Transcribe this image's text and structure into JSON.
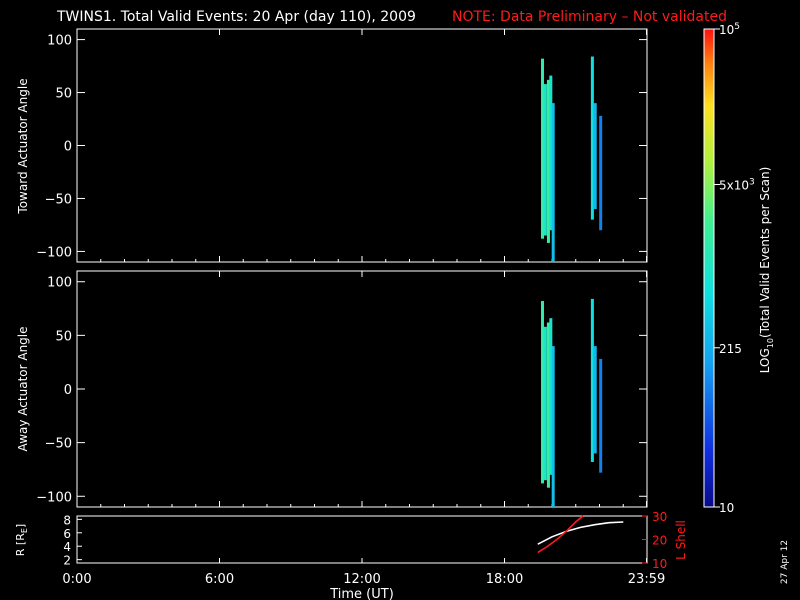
{
  "title": {
    "main": "TWINS1. Total Valid Events: 20 Apr (day 110), 2009",
    "note": "NOTE: Data Preliminary – Not validated",
    "note_color": "#ff1a1a"
  },
  "stamp": "27 Apr 12",
  "chart_data": [
    {
      "type": "heatmap",
      "panel": "toward",
      "ylabel": "Toward Actuator Angle",
      "xlim": [
        0,
        24
      ],
      "ylim": [
        -110,
        110
      ],
      "y_ticks": [
        "100",
        "50",
        "0",
        "−50",
        "−100"
      ],
      "y_tick_values": [
        100,
        50,
        0,
        -50,
        -100
      ],
      "strips": [
        {
          "t": 19.6,
          "ymin": -88,
          "ymax": 82,
          "log10": 3.2
        },
        {
          "t": 19.72,
          "ymin": -85,
          "ymax": 58,
          "log10": 3.0
        },
        {
          "t": 19.85,
          "ymin": -92,
          "ymax": 62,
          "log10": 3.3
        },
        {
          "t": 19.95,
          "ymin": -80,
          "ymax": 66,
          "log10": 2.9
        },
        {
          "t": 20.05,
          "ymin": -110,
          "ymax": 40,
          "log10": 2.5
        },
        {
          "t": 21.7,
          "ymin": -70,
          "ymax": 84,
          "log10": 2.8
        },
        {
          "t": 21.82,
          "ymin": -60,
          "ymax": 40,
          "log10": 2.4
        },
        {
          "t": 22.05,
          "ymin": -80,
          "ymax": 28,
          "log10": 2.0
        }
      ]
    },
    {
      "type": "heatmap",
      "panel": "away",
      "ylabel": "Away Actuator Angle",
      "xlim": [
        0,
        24
      ],
      "ylim": [
        -110,
        110
      ],
      "y_ticks": [
        "100",
        "50",
        "0",
        "−50",
        "−100"
      ],
      "y_tick_values": [
        100,
        50,
        0,
        -50,
        -100
      ],
      "strips": [
        {
          "t": 19.6,
          "ymin": -88,
          "ymax": 82,
          "log10": 3.2
        },
        {
          "t": 19.72,
          "ymin": -85,
          "ymax": 58,
          "log10": 3.0
        },
        {
          "t": 19.85,
          "ymin": -92,
          "ymax": 62,
          "log10": 3.3
        },
        {
          "t": 19.95,
          "ymin": -80,
          "ymax": 66,
          "log10": 2.9
        },
        {
          "t": 20.05,
          "ymin": -110,
          "ymax": 40,
          "log10": 2.5
        },
        {
          "t": 21.7,
          "ymin": -68,
          "ymax": 84,
          "log10": 2.8
        },
        {
          "t": 21.82,
          "ymin": -60,
          "ymax": 40,
          "log10": 2.4
        },
        {
          "t": 22.05,
          "ymin": -78,
          "ymax": 28,
          "log10": 2.0
        }
      ]
    },
    {
      "type": "line",
      "panel": "orbit",
      "ylabel": "R [R",
      "ylabel_sub": "E",
      "ylabel_close": "]",
      "y2label": "L Shell",
      "xlabel": "Time (UT)",
      "xlim": [
        0,
        24
      ],
      "x_ticks": [
        "0:00",
        "6:00",
        "12:00",
        "18:00",
        "23:59"
      ],
      "x_tick_values": [
        0,
        6,
        12,
        18,
        23.98
      ],
      "ylim": [
        1.5,
        8.5
      ],
      "y_ticks": [
        "8",
        "6",
        "4",
        "2"
      ],
      "y_tick_values": [
        8,
        6,
        4,
        2
      ],
      "y2lim": [
        10,
        30
      ],
      "y2_ticks": [
        "30",
        "20",
        "10"
      ],
      "y2_tick_values": [
        30,
        20,
        10
      ],
      "series": [
        {
          "axis": "left",
          "color": "#ffffff",
          "x": [
            19.4,
            20.0,
            20.6,
            21.2,
            21.8,
            22.4,
            23.0
          ],
          "y": [
            4.3,
            5.4,
            6.2,
            6.8,
            7.2,
            7.5,
            7.6
          ]
        },
        {
          "axis": "right",
          "color": "#ff1a1a",
          "x": [
            19.4,
            19.8,
            20.2,
            20.6,
            21.0,
            21.3
          ],
          "y": [
            14.5,
            17.0,
            20.0,
            23.5,
            27.5,
            30.0
          ]
        }
      ]
    }
  ],
  "colorbar": {
    "label": "LOG",
    "label_sub": "10",
    "label_rest": "(Total Valid Events per Scan)",
    "scale": "log",
    "range": [
      10,
      100000
    ],
    "ticks": [
      {
        "value": 10,
        "label": "10"
      },
      {
        "value": 215,
        "label": "215"
      },
      {
        "value": 5000,
        "label_base": "5x10",
        "label_exp": "3"
      },
      {
        "value": 100000,
        "label_base": "10",
        "label_exp": "5"
      }
    ]
  }
}
